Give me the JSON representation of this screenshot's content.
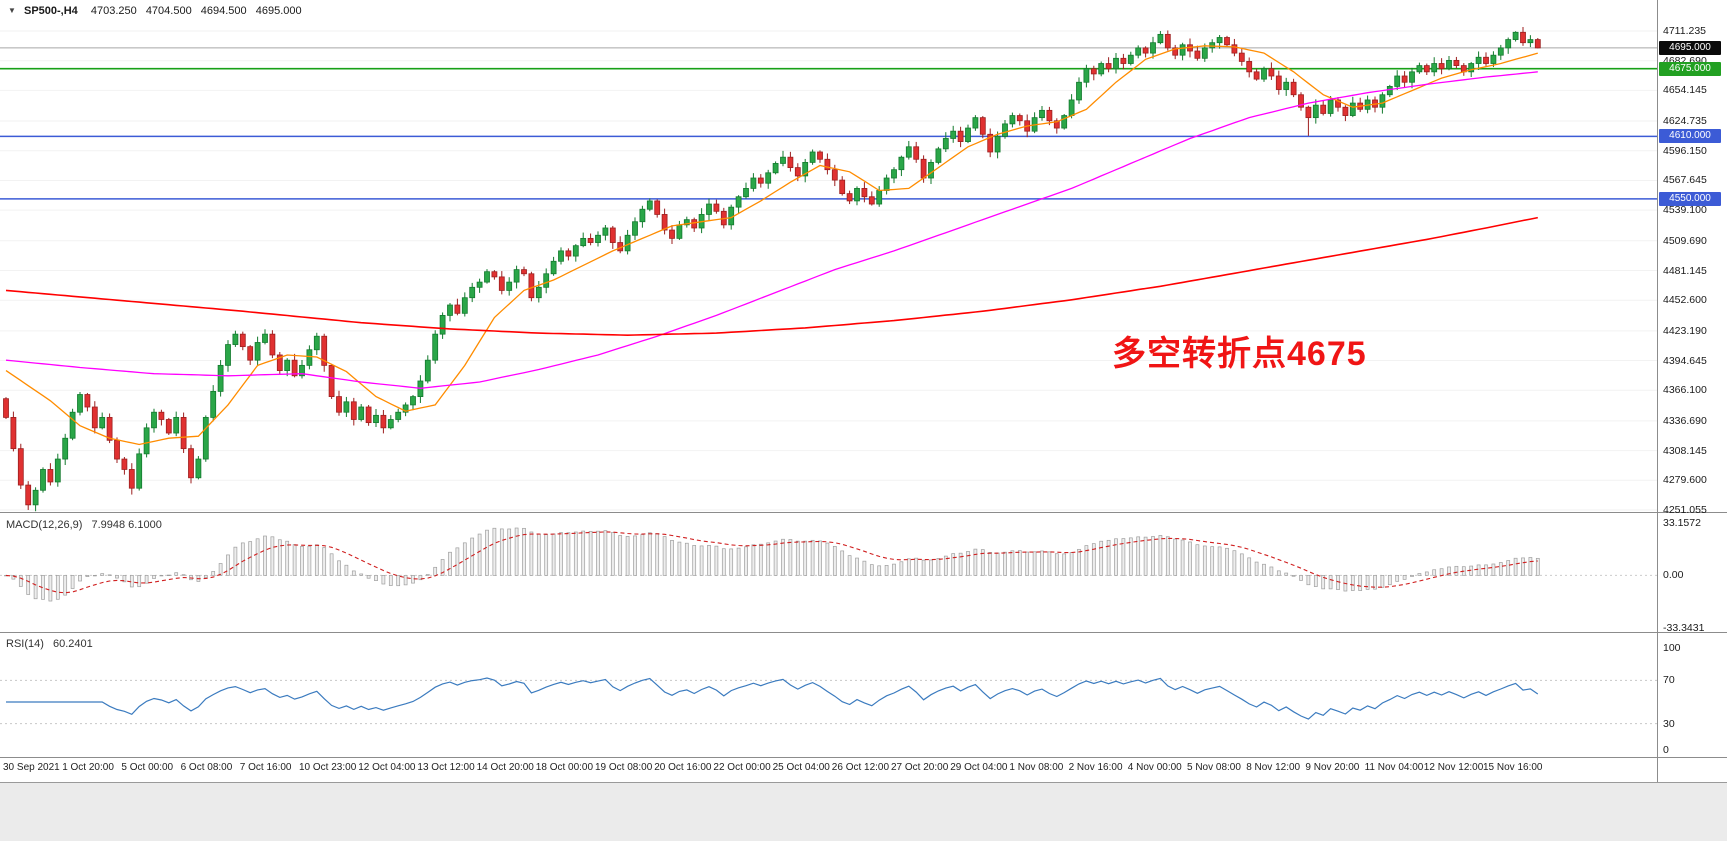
{
  "header": {
    "dropdown_icon": "▼",
    "symbol": "SP500-,H4",
    "open": "4703.250",
    "high": "4704.500",
    "low": "4694.500",
    "close": "4695.000"
  },
  "annotation": {
    "text": "多空转折点4675",
    "color": "#f01515"
  },
  "chart_data": {
    "type": "candlestick",
    "symbol": "SP500",
    "timeframe": "H4",
    "title": "SP500-,H4",
    "up_color": "#2aa648",
    "up_stroke": "#137a2e",
    "down_color": "#e03131",
    "down_stroke": "#9c1f1f",
    "x_labels": [
      "30 Sep 2021",
      "1 Oct 20:00",
      "5 Oct 00:00",
      "6 Oct 08:00",
      "7 Oct 16:00",
      "10 Oct 23:00",
      "12 Oct 04:00",
      "13 Oct 12:00",
      "14 Oct 20:00",
      "18 Oct 00:00",
      "19 Oct 08:00",
      "20 Oct 16:00",
      "22 Oct 00:00",
      "25 Oct 04:00",
      "26 Oct 12:00",
      "27 Oct 20:00",
      "29 Oct 04:00",
      "1 Nov 08:00",
      "2 Nov 16:00",
      "4 Nov 00:00",
      "5 Nov 08:00",
      "8 Nov 12:00",
      "9 Nov 20:00",
      "11 Nov 04:00",
      "12 Nov 12:00",
      "15 Nov 16:00"
    ],
    "y_ticks": [
      4711.235,
      4682.69,
      4654.145,
      4624.735,
      4596.15,
      4567.645,
      4539.1,
      4509.69,
      4481.145,
      4452.6,
      4423.19,
      4394.645,
      4366.1,
      4336.69,
      4308.145,
      4279.6,
      4251.055
    ],
    "price_tags": [
      {
        "label": "4695.000",
        "price": 4695.0,
        "bg": "#0a0a0a",
        "line_color": "#a6a6a6",
        "line_width": 1
      },
      {
        "label": "4675.000",
        "price": 4675.0,
        "bg": "#22a022",
        "line_color": "#18a018",
        "line_width": 1.6
      },
      {
        "label": "4610.000",
        "price": 4610.0,
        "bg": "#3c5bd6",
        "line_color": "#3c5bd6",
        "line_width": 1.5
      },
      {
        "label": "4550.000",
        "price": 4550.0,
        "bg": "#3c5bd6",
        "line_color": "#3c5bd6",
        "line_width": 1.5
      }
    ],
    "first_open": 4358,
    "closes": [
      4340,
      4310,
      4275,
      4256,
      4270,
      4290,
      4278,
      4300,
      4320,
      4345,
      4362,
      4350,
      4330,
      4340,
      4318,
      4300,
      4290,
      4272,
      4305,
      4330,
      4345,
      4338,
      4325,
      4340,
      4310,
      4282,
      4300,
      4340,
      4365,
      4390,
      4410,
      4420,
      4408,
      4395,
      4412,
      4420,
      4400,
      4385,
      4395,
      4380,
      4390,
      4405,
      4418,
      4390,
      4360,
      4345,
      4355,
      4338,
      4350,
      4335,
      4342,
      4330,
      4338,
      4345,
      4352,
      4360,
      4375,
      4395,
      4420,
      4438,
      4448,
      4440,
      4455,
      4465,
      4470,
      4480,
      4475,
      4462,
      4470,
      4482,
      4478,
      4455,
      4465,
      4478,
      4490,
      4500,
      4495,
      4505,
      4512,
      4508,
      4515,
      4522,
      4508,
      4500,
      4515,
      4528,
      4540,
      4548,
      4535,
      4520,
      4512,
      4525,
      4530,
      4522,
      4535,
      4545,
      4538,
      4525,
      4542,
      4552,
      4560,
      4570,
      4565,
      4575,
      4584,
      4590,
      4580,
      4572,
      4585,
      4595,
      4588,
      4578,
      4568,
      4555,
      4548,
      4560,
      4552,
      4545,
      4558,
      4570,
      4578,
      4590,
      4600,
      4588,
      4570,
      4585,
      4598,
      4608,
      4615,
      4605,
      4618,
      4628,
      4612,
      4595,
      4610,
      4622,
      4630,
      4625,
      4615,
      4628,
      4635,
      4625,
      4618,
      4630,
      4645,
      4662,
      4675,
      4670,
      4680,
      4675,
      4685,
      4680,
      4688,
      4695,
      4690,
      4700,
      4708,
      4695,
      4688,
      4698,
      4692,
      4685,
      4695,
      4700,
      4705,
      4698,
      4690,
      4682,
      4672,
      4665,
      4675,
      4668,
      4655,
      4662,
      4650,
      4638,
      4628,
      4640,
      4632,
      4645,
      4638,
      4630,
      4642,
      4636,
      4645,
      4638,
      4650,
      4658,
      4668,
      4662,
      4672,
      4678,
      4672,
      4680,
      4675,
      4683,
      4678,
      4672,
      4680,
      4686,
      4680,
      4688,
      4695,
      4703,
      4710,
      4700,
      4703,
      4695
    ],
    "wick_overrides": [
      {
        "i": 3,
        "low": 4251.1
      },
      {
        "i": 156,
        "high": 4711.2
      },
      {
        "i": 176,
        "low": 4610.5
      },
      {
        "i": 204,
        "high": 4711.0
      },
      {
        "i": 207,
        "high": 4704.5,
        "low": 4694.5
      }
    ],
    "moving_averages": [
      {
        "name": "fast-ma",
        "color": "#ff8c00",
        "width": 1.3,
        "anchors": [
          [
            0,
            4385
          ],
          [
            6,
            4356
          ],
          [
            10,
            4332
          ],
          [
            14,
            4320
          ],
          [
            18,
            4314
          ],
          [
            22,
            4320
          ],
          [
            26,
            4322
          ],
          [
            30,
            4352
          ],
          [
            34,
            4390
          ],
          [
            38,
            4400
          ],
          [
            42,
            4398
          ],
          [
            46,
            4384
          ],
          [
            50,
            4360
          ],
          [
            54,
            4346
          ],
          [
            58,
            4352
          ],
          [
            62,
            4390
          ],
          [
            66,
            4436
          ],
          [
            70,
            4462
          ],
          [
            74,
            4472
          ],
          [
            78,
            4486
          ],
          [
            82,
            4500
          ],
          [
            86,
            4512
          ],
          [
            90,
            4524
          ],
          [
            94,
            4528
          ],
          [
            98,
            4532
          ],
          [
            102,
            4548
          ],
          [
            106,
            4566
          ],
          [
            110,
            4582
          ],
          [
            114,
            4576
          ],
          [
            118,
            4558
          ],
          [
            122,
            4560
          ],
          [
            126,
            4580
          ],
          [
            130,
            4600
          ],
          [
            134,
            4612
          ],
          [
            138,
            4620
          ],
          [
            142,
            4624
          ],
          [
            146,
            4636
          ],
          [
            150,
            4662
          ],
          [
            154,
            4684
          ],
          [
            158,
            4694
          ],
          [
            162,
            4697
          ],
          [
            166,
            4696
          ],
          [
            170,
            4690
          ],
          [
            174,
            4672
          ],
          [
            178,
            4650
          ],
          [
            182,
            4638
          ],
          [
            186,
            4642
          ],
          [
            190,
            4654
          ],
          [
            194,
            4666
          ],
          [
            198,
            4674
          ],
          [
            202,
            4680
          ],
          [
            207,
            4690
          ]
        ]
      },
      {
        "name": "mid-ma",
        "color": "#ff00ff",
        "width": 1.3,
        "anchors": [
          [
            0,
            4395
          ],
          [
            10,
            4388
          ],
          [
            20,
            4382
          ],
          [
            30,
            4380
          ],
          [
            40,
            4382
          ],
          [
            48,
            4374
          ],
          [
            56,
            4368
          ],
          [
            64,
            4374
          ],
          [
            72,
            4386
          ],
          [
            80,
            4400
          ],
          [
            88,
            4418
          ],
          [
            96,
            4438
          ],
          [
            104,
            4460
          ],
          [
            112,
            4482
          ],
          [
            120,
            4500
          ],
          [
            128,
            4520
          ],
          [
            136,
            4540
          ],
          [
            144,
            4560
          ],
          [
            152,
            4584
          ],
          [
            160,
            4608
          ],
          [
            168,
            4628
          ],
          [
            176,
            4642
          ],
          [
            184,
            4652
          ],
          [
            192,
            4660
          ],
          [
            200,
            4667
          ],
          [
            207,
            4672
          ]
        ]
      },
      {
        "name": "slow-ma",
        "color": "#ff0000",
        "width": 1.6,
        "anchors": [
          [
            0,
            4462
          ],
          [
            16,
            4452
          ],
          [
            32,
            4442
          ],
          [
            48,
            4431
          ],
          [
            60,
            4425
          ],
          [
            72,
            4421
          ],
          [
            84,
            4419
          ],
          [
            96,
            4421
          ],
          [
            108,
            4426
          ],
          [
            120,
            4433
          ],
          [
            132,
            4442
          ],
          [
            144,
            4453
          ],
          [
            156,
            4466
          ],
          [
            168,
            4481
          ],
          [
            180,
            4496
          ],
          [
            192,
            4511
          ],
          [
            200,
            4522
          ],
          [
            207,
            4532
          ]
        ]
      }
    ],
    "indicators": [
      {
        "name": "MACD",
        "label": "MACD(12,26,9)",
        "values": "7.9948 6.1000",
        "fast": 12,
        "slow": 26,
        "signal": 9,
        "axis_labels": [
          "33.1572",
          "0.00",
          "-33.3431"
        ],
        "axis_values": [
          33.1572,
          0,
          -33.3431
        ],
        "histogram_fill": "#ededed",
        "histogram_stroke": "#9e9e9e",
        "signal_color": "#d02020"
      },
      {
        "name": "RSI",
        "label": "RSI(14)",
        "values": "60.2401",
        "period": 14,
        "axis_labels": [
          "100",
          "70",
          "30",
          "0"
        ],
        "axis_values": [
          100,
          70,
          30,
          0
        ],
        "line_color": "#3b7bbf",
        "levels": [
          70,
          30
        ]
      }
    ]
  }
}
